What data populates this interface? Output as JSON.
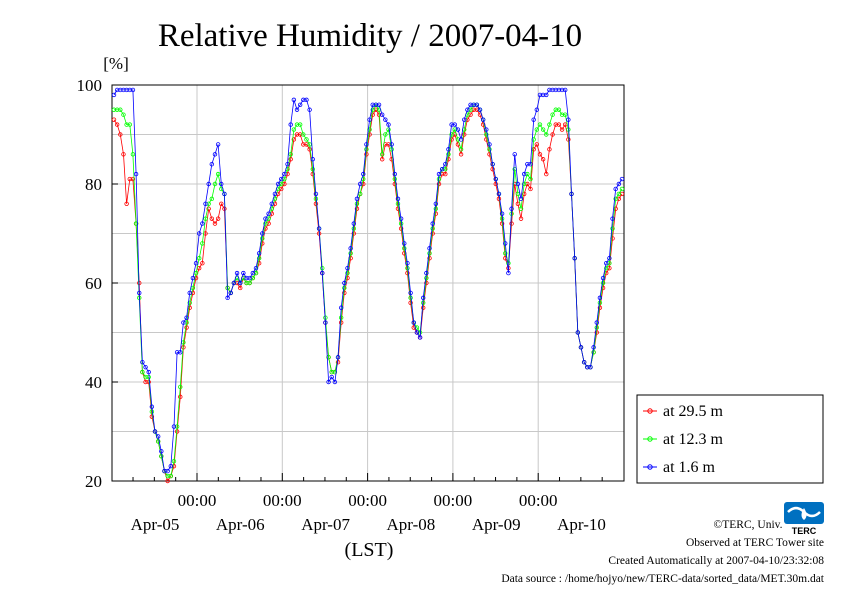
{
  "chart_data": {
    "type": "line",
    "title": "Relative Humidity / 2007-04-10",
    "yunit": "[%]",
    "xlabel": "(LST)",
    "ylim": [
      20,
      100
    ],
    "yticks": [
      20,
      40,
      60,
      80,
      100
    ],
    "x_tick_time": [
      "00:00",
      "00:00",
      "00:00",
      "00:00",
      "00:00"
    ],
    "x_tick_dates": [
      "Apr-05",
      "Apr-06",
      "Apr-07",
      "Apr-08",
      "Apr-09",
      "Apr-10"
    ],
    "grid": true,
    "legend_position": "bottom-right outside",
    "series": [
      {
        "name": "at 29.5 m",
        "color": "#ff0000",
        "values": [
          93,
          92,
          90,
          86,
          76,
          81,
          81,
          72,
          60,
          42,
          40,
          40,
          33,
          30,
          28,
          25,
          22,
          20,
          21,
          23,
          30,
          37,
          47,
          51,
          55,
          58,
          61,
          63,
          64,
          70,
          75,
          73,
          72,
          73,
          76,
          75,
          59,
          58,
          60,
          60,
          59,
          61,
          60,
          60,
          61,
          62,
          64,
          68,
          71,
          72,
          74,
          76,
          78,
          79,
          80,
          82,
          85,
          89,
          90,
          90,
          88,
          88,
          87,
          82,
          76,
          70,
          62,
          52,
          45,
          42,
          42,
          44,
          52,
          58,
          61,
          65,
          70,
          75,
          78,
          80,
          86,
          90,
          94,
          95,
          94,
          85,
          88,
          88,
          85,
          80,
          75,
          71,
          66,
          62,
          56,
          51,
          50,
          49,
          55,
          60,
          65,
          70,
          74,
          80,
          82,
          82,
          85,
          89,
          90,
          88,
          86,
          90,
          93,
          94,
          95,
          95,
          94,
          92,
          89,
          86,
          83,
          80,
          77,
          72,
          65,
          63,
          72,
          80,
          76,
          73,
          78,
          80,
          79,
          87,
          88,
          86,
          85,
          82,
          87,
          90,
          92,
          92,
          91,
          92,
          89,
          78,
          65,
          50,
          47,
          44,
          43,
          43,
          46,
          50,
          55,
          59,
          62,
          63,
          69,
          75,
          77,
          78
        ]
      },
      {
        "name": "at 12.3 m",
        "color": "#00ff00",
        "values": [
          95,
          95,
          95,
          94,
          92,
          92,
          86,
          72,
          57,
          42,
          41,
          41,
          34,
          30,
          28,
          25,
          22,
          21,
          21,
          24,
          31,
          39,
          48,
          52,
          56,
          59,
          62,
          65,
          68,
          73,
          76,
          77,
          80,
          82,
          79,
          78,
          59,
          58,
          60,
          61,
          60,
          61,
          60,
          60,
          61,
          62,
          65,
          69,
          72,
          73,
          75,
          77,
          79,
          80,
          81,
          83,
          86,
          91,
          92,
          92,
          90,
          89,
          88,
          83,
          77,
          71,
          63,
          53,
          45,
          42,
          42,
          45,
          53,
          59,
          62,
          66,
          71,
          76,
          78,
          81,
          87,
          91,
          95,
          96,
          95,
          86,
          90,
          91,
          87,
          81,
          76,
          72,
          67,
          63,
          57,
          52,
          51,
          50,
          56,
          61,
          66,
          71,
          75,
          81,
          83,
          83,
          86,
          90,
          91,
          89,
          87,
          91,
          94,
          95,
          96,
          96,
          95,
          93,
          90,
          87,
          84,
          81,
          78,
          73,
          66,
          64,
          74,
          83,
          78,
          75,
          80,
          82,
          81,
          89,
          91,
          92,
          91,
          90,
          92,
          94,
          95,
          95,
          94,
          94,
          91,
          78,
          65,
          50,
          47,
          44,
          43,
          43,
          46,
          51,
          56,
          60,
          63,
          64,
          71,
          77,
          78,
          79
        ]
      },
      {
        "name": "at 1.6 m",
        "color": "#0000ff",
        "values": [
          98,
          99,
          99,
          99,
          99,
          99,
          99,
          82,
          58,
          44,
          43,
          42,
          35,
          30,
          29,
          26,
          22,
          22,
          23,
          31,
          46,
          46,
          52,
          53,
          58,
          61,
          64,
          70,
          72,
          76,
          80,
          84,
          86,
          88,
          80,
          78,
          57,
          58,
          60,
          62,
          60,
          62,
          61,
          61,
          62,
          63,
          66,
          70,
          73,
          74,
          76,
          78,
          80,
          81,
          82,
          84,
          92,
          97,
          95,
          96,
          97,
          97,
          95,
          85,
          78,
          71,
          62,
          52,
          40,
          41,
          40,
          45,
          55,
          60,
          63,
          67,
          72,
          77,
          80,
          82,
          88,
          93,
          96,
          96,
          96,
          94,
          93,
          92,
          88,
          82,
          77,
          73,
          68,
          64,
          58,
          52,
          50,
          49,
          57,
          62,
          67,
          72,
          76,
          82,
          83,
          84,
          87,
          92,
          92,
          91,
          89,
          93,
          95,
          96,
          96,
          96,
          95,
          93,
          91,
          88,
          84,
          81,
          78,
          74,
          68,
          62,
          75,
          86,
          80,
          77,
          82,
          84,
          84,
          93,
          95,
          98,
          98,
          98,
          99,
          99,
          99,
          99,
          99,
          99,
          93,
          78,
          65,
          50,
          47,
          44,
          43,
          43,
          47,
          52,
          57,
          61,
          64,
          65,
          73,
          79,
          80,
          81
        ]
      }
    ]
  },
  "credits": {
    "copyright": "©TERC, Univ. Tsukuba",
    "observed": "Observed at TERC Tower site",
    "created": "Created Automatically at 2007-04-10/23:32:08",
    "source": "Data source : /home/hojyo/new/TERC-data/sorted_data/MET.30m.dat"
  },
  "logo": {
    "text": "TERC",
    "color": "#0070c0"
  }
}
